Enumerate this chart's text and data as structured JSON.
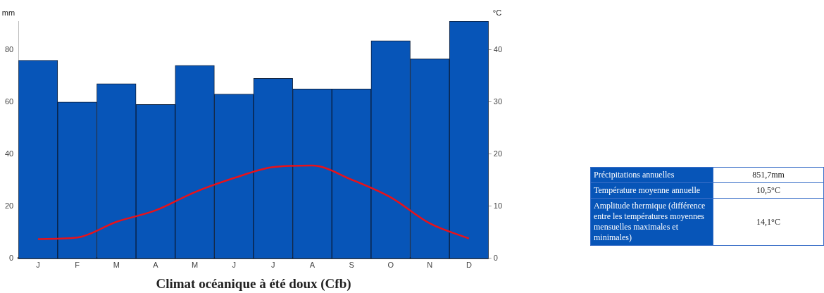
{
  "chart_data": [
    {
      "type": "bar",
      "title": "Climat océanique à été doux (Cfb)",
      "ylabel": "mm",
      "y2label": "°C",
      "categories": [
        "J",
        "F",
        "M",
        "A",
        "M",
        "J",
        "J",
        "A",
        "S",
        "O",
        "N",
        "D"
      ],
      "series": [
        {
          "type": "bar",
          "color": "#0755b8",
          "values": [
            76,
            60,
            67,
            59,
            74,
            63,
            69,
            65,
            65,
            83.5,
            76.5,
            91
          ]
        },
        {
          "type": "line",
          "axis": "y2",
          "color": "#e8121a",
          "values": [
            3.7,
            4.0,
            7.0,
            9.2,
            12.7,
            15.4,
            17.5,
            17.8,
            15.1,
            11.7,
            6.7,
            3.8
          ]
        }
      ],
      "ylim": [
        0,
        91
      ],
      "yticks": [
        0,
        20,
        40,
        60,
        80
      ],
      "y2lim": [
        0,
        45.5
      ],
      "y2ticks": [
        0,
        10,
        20,
        30,
        40
      ],
      "grid": false,
      "legend": false,
      "marker": "none",
      "line_style": "solid"
    },
    {
      "type": "other",
      "annotations": [
        "Précipitations annuelles",
        "851,7mm",
        "Température moyenne annuelle",
        "10,5°C",
        "Amplitude thermique (différence entre les températures moyennes mensuelles maximales et minimales)",
        "14,1°C"
      ]
    }
  ]
}
